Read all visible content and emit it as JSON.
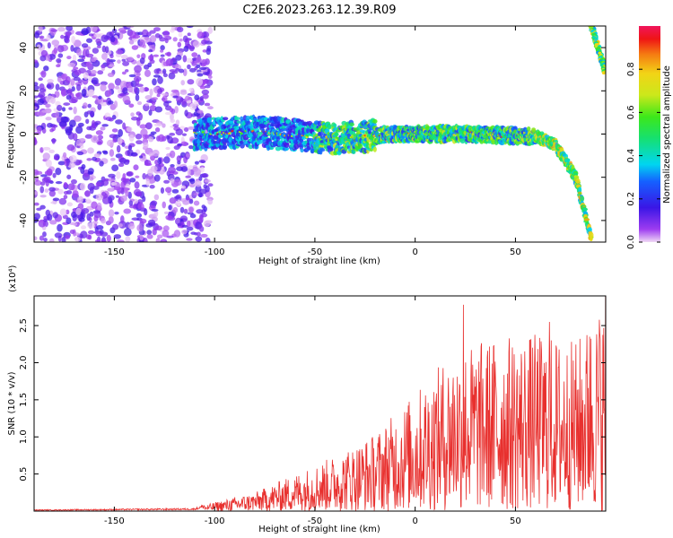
{
  "figure_title": "C2E6.2023.263.12.39.R09",
  "chart_data": [
    {
      "type": "heatmap",
      "title": "C2E6.2023.263.12.39.R09",
      "xlabel": "Height of straight line (km)",
      "ylabel": "Frequency (Hz)",
      "xlim": [
        -190,
        95
      ],
      "ylim": [
        -50,
        50
      ],
      "x_ticks": [
        -150,
        -100,
        -50,
        0,
        50
      ],
      "y_ticks": [
        -40,
        -20,
        0,
        20,
        40
      ],
      "colorbar": {
        "label": "Normalized spectral amplitude",
        "range": [
          0,
          1
        ],
        "ticks": [
          "0.0",
          "0.2",
          "0.4",
          "0.6",
          "0.8"
        ]
      },
      "ridge": {
        "description_points": [
          {
            "x": -110,
            "y": 0
          },
          {
            "x": -80,
            "y": 1
          },
          {
            "x": -40,
            "y": -2
          },
          {
            "x": -10,
            "y": 0
          },
          {
            "x": 30,
            "y": 0
          },
          {
            "x": 60,
            "y": -1
          },
          {
            "x": 70,
            "y": -5
          },
          {
            "x": 80,
            "y": -20
          },
          {
            "x": 88,
            "y": -50
          }
        ],
        "branch": [
          {
            "x": 88,
            "y": 50
          },
          {
            "x": 95,
            "y": 28
          }
        ]
      },
      "noise_region": {
        "x_from": -190,
        "x_to": -110
      }
    },
    {
      "type": "line",
      "xlabel": "Height of straight line (km)",
      "ylabel": "SNR (10 * v/v)",
      "y_multiplier": "(x10⁴)",
      "xlim": [
        -190,
        95
      ],
      "ylim": [
        0,
        29000
      ],
      "x_ticks": [
        -150,
        -100,
        -50,
        0,
        50
      ],
      "y_ticks": [
        {
          "value": 5000,
          "label": "0.5"
        },
        {
          "value": 10000,
          "label": "1.0"
        },
        {
          "value": 15000,
          "label": "1.5"
        },
        {
          "value": 20000,
          "label": "2.0"
        },
        {
          "value": 25000,
          "label": "2.5"
        }
      ],
      "color": "#e8302e",
      "envelope": [
        {
          "x": -190,
          "y": 150
        },
        {
          "x": -110,
          "y": 300
        },
        {
          "x": -100,
          "y": 1200
        },
        {
          "x": -80,
          "y": 2500
        },
        {
          "x": -60,
          "y": 5000
        },
        {
          "x": -40,
          "y": 7500
        },
        {
          "x": -20,
          "y": 10500
        },
        {
          "x": 0,
          "y": 16000
        },
        {
          "x": 20,
          "y": 22000
        },
        {
          "x": 40,
          "y": 23500
        },
        {
          "x": 60,
          "y": 24000
        },
        {
          "x": 80,
          "y": 23000
        },
        {
          "x": 95,
          "y": 28500
        }
      ],
      "peaks": [
        {
          "x": 24,
          "y": 27800
        },
        {
          "x": 95,
          "y": 29000
        },
        {
          "x": 67,
          "y": 25500
        },
        {
          "x": 92,
          "y": 24000
        },
        {
          "x": 87,
          "y": 23500
        }
      ]
    }
  ]
}
